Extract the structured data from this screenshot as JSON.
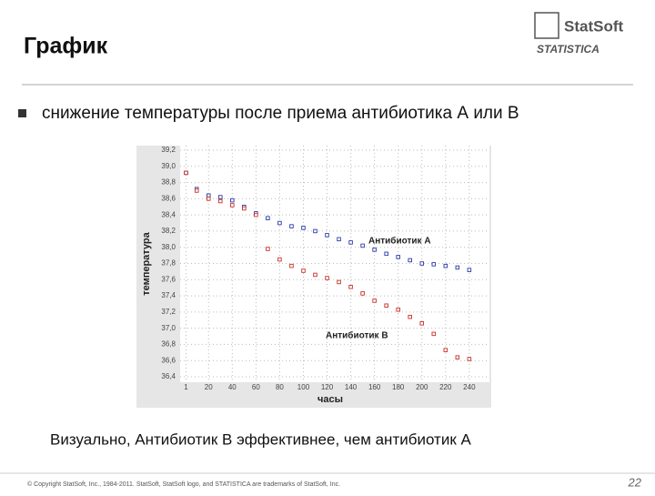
{
  "slide": {
    "title": "График",
    "bullet": "снижение температуры после приема антибиотика А или В",
    "conclusion": "Визуально, Антибиотик В эффективнее, чем антибиотик А",
    "footer": "© Copyright StatSoft, Inc., 1984-2011. StatSoft, StatSoft logo, and STATISTICA are trademarks of StatSoft, Inc.",
    "page_number": "22",
    "logo_top": "StatSoft",
    "logo_bottom": "STATISTICA"
  },
  "chart_data": {
    "type": "scatter",
    "x_label": "часы",
    "y_label": "температура",
    "x": [
      1,
      10,
      20,
      30,
      40,
      50,
      60,
      70,
      80,
      90,
      100,
      110,
      120,
      130,
      140,
      150,
      160,
      170,
      180,
      190,
      200,
      210,
      220,
      230,
      240
    ],
    "series": [
      {
        "name": "Антибиотик А",
        "color": "#2a3aa8",
        "values": [
          38.92,
          38.72,
          38.64,
          38.62,
          38.58,
          38.5,
          38.42,
          38.36,
          38.3,
          38.26,
          38.24,
          38.2,
          38.15,
          38.1,
          38.06,
          38.02,
          37.97,
          37.92,
          37.88,
          37.84,
          37.8,
          37.79,
          37.77,
          37.75,
          37.72
        ]
      },
      {
        "name": "Антибиотик В",
        "color": "#c8302a",
        "values": [
          38.92,
          38.7,
          38.6,
          38.57,
          38.52,
          38.48,
          38.4,
          37.98,
          37.85,
          37.77,
          37.71,
          37.66,
          37.62,
          37.57,
          37.51,
          37.43,
          37.34,
          37.28,
          37.23,
          37.14,
          37.06,
          36.93,
          36.73,
          36.64,
          36.62
        ]
      }
    ],
    "xlim": [
      -4,
      257
    ],
    "xticks": [
      1,
      20,
      40,
      60,
      80,
      100,
      120,
      140,
      160,
      180,
      200,
      220,
      240
    ],
    "ylim": [
      36.4,
      39.2
    ],
    "yticks": [
      {
        "value": 36.4,
        "label": "36,4"
      },
      {
        "value": 36.6,
        "label": "36,6"
      },
      {
        "value": 36.8,
        "label": "36,8"
      },
      {
        "value": 37.0,
        "label": "37,0"
      },
      {
        "value": 37.2,
        "label": "37,2"
      },
      {
        "value": 37.4,
        "label": "37,4"
      },
      {
        "value": 37.6,
        "label": "37,6"
      },
      {
        "value": 37.8,
        "label": "37,8"
      },
      {
        "value": 38.0,
        "label": "38,0"
      },
      {
        "value": 38.2,
        "label": "38,2"
      },
      {
        "value": 38.4,
        "label": "38,4"
      },
      {
        "value": 38.6,
        "label": "38,6"
      },
      {
        "value": 38.8,
        "label": "38,8"
      },
      {
        "value": 39.0,
        "label": "39,0"
      },
      {
        "value": 39.2,
        "label": "39,2"
      }
    ],
    "grid": true
  }
}
